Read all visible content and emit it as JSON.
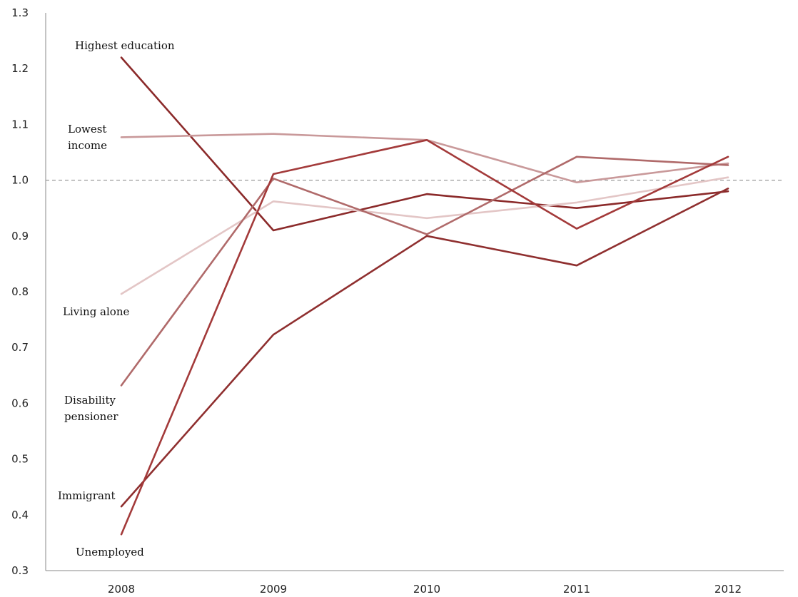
{
  "chart_data": {
    "type": "line",
    "title": "",
    "xlabel": "",
    "ylabel": "",
    "x": [
      "2008",
      "2009",
      "2010",
      "2011",
      "2012"
    ],
    "ylim": [
      0.3,
      1.3
    ],
    "yticks": [
      "0.3",
      "0.4",
      "0.5",
      "0.6",
      "0.7",
      "0.8",
      "0.9",
      "1.0",
      "1.1",
      "1.2",
      "1.3"
    ],
    "reference_line": 1.0,
    "grid": false,
    "legend": "inline labels at left",
    "series": [
      {
        "name": "Highest education",
        "values": [
          1.22,
          0.91,
          0.975,
          0.95,
          0.98
        ],
        "color": "#8b2a2a"
      },
      {
        "name": "Lowest income",
        "values": [
          1.077,
          1.083,
          1.072,
          0.996,
          1.03
        ],
        "color": "#c9999a"
      },
      {
        "name": "Living alone",
        "values": [
          0.796,
          0.962,
          0.932,
          0.96,
          1.005
        ],
        "color": "#e3c6c6"
      },
      {
        "name": "Disability pensioner",
        "values": [
          0.632,
          1.003,
          0.903,
          1.042,
          1.027
        ],
        "color": "#b06a6a"
      },
      {
        "name": "Immigrant",
        "values": [
          0.415,
          0.723,
          0.9,
          0.847,
          0.985
        ],
        "color": "#8f2f2f"
      },
      {
        "name": "Unemployed",
        "values": [
          0.365,
          1.011,
          1.072,
          0.913,
          1.042
        ],
        "color": "#a33a3a"
      }
    ]
  }
}
